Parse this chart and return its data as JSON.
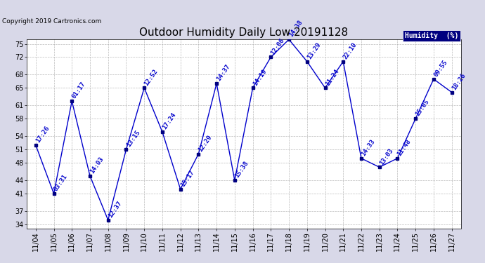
{
  "title": "Outdoor Humidity Daily Low 20191128",
  "copyright": "Copyright 2019 Cartronics.com",
  "legend_label": "Humidity  (%)",
  "x_labels": [
    "11/04",
    "11/05",
    "11/06",
    "11/07",
    "11/08",
    "11/09",
    "11/10",
    "11/11",
    "11/12",
    "11/13",
    "11/14",
    "11/15",
    "11/16",
    "11/17",
    "11/18",
    "11/19",
    "11/20",
    "11/21",
    "11/22",
    "11/23",
    "11/24",
    "11/25",
    "11/26",
    "11/27"
  ],
  "y_values": [
    52,
    41,
    62,
    45,
    35,
    51,
    65,
    55,
    42,
    50,
    66,
    44,
    65,
    72,
    76,
    71,
    65,
    71,
    49,
    47,
    49,
    58,
    67,
    64
  ],
  "point_labels": [
    "17:26",
    "03:31",
    "01:17",
    "14:03",
    "12:37",
    "13:15",
    "12:52",
    "17:24",
    "15:17",
    "12:29",
    "14:37",
    "15:38",
    "14:19",
    "12:06",
    "14:38",
    "13:29",
    "11:24",
    "22:10",
    "14:33",
    "13:03",
    "11:48",
    "15:05",
    "09:55",
    "18:26"
  ],
  "ylim": [
    33,
    76
  ],
  "yticks": [
    34,
    37,
    41,
    44,
    48,
    51,
    54,
    58,
    61,
    65,
    68,
    72,
    75
  ],
  "line_color": "#0000cc",
  "marker_color": "#000080",
  "label_color": "#0000cc",
  "background_color": "#d8d8e8",
  "plot_bg_color": "#ffffff",
  "grid_color": "#aaaaaa",
  "title_fontsize": 11,
  "label_fontsize": 6.5,
  "tick_fontsize": 7,
  "xtick_fontsize": 7,
  "legend_bg": "#000080",
  "legend_fg": "#ffffff"
}
